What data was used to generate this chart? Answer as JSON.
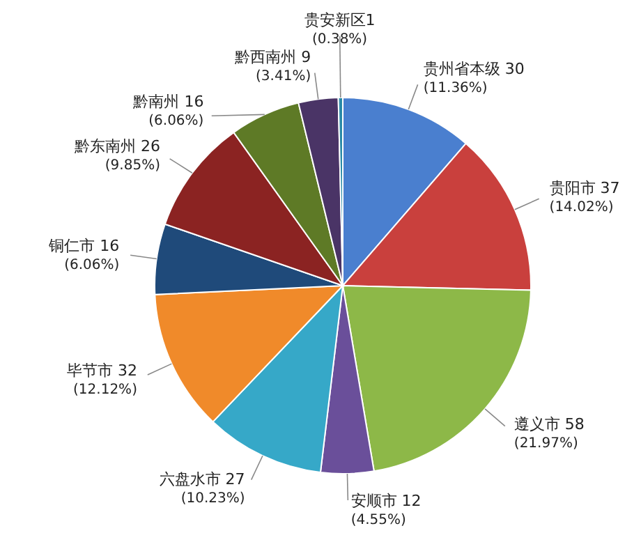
{
  "chart_data": {
    "type": "pie",
    "categories": [
      "贵州省本级 30",
      "贵阳市 37",
      "遵义市 58",
      "安顺市 12",
      "六盘水市 27",
      "毕节市 32",
      "铜仁市 16",
      "黔东南州 26",
      "黔南州 16",
      "黔西南州 9",
      "贵安新区1"
    ],
    "values": [
      11.36,
      14.02,
      21.97,
      4.55,
      10.23,
      12.12,
      6.06,
      9.85,
      6.06,
      3.41,
      0.38
    ],
    "value_labels": [
      "(11.36%)",
      "(14.02%)",
      "(21.97%)",
      "(4.55%)",
      "(10.23%)",
      "(12.12%)",
      "(6.06%)",
      "(9.85%)",
      "(6.06%)",
      "(3.41%)",
      "(0.38%)"
    ],
    "colors": [
      "#4a7fcf",
      "#c9403d",
      "#8db848",
      "#6a4f9a",
      "#36a8c8",
      "#f08a2a",
      "#1f4a7a",
      "#8b2322",
      "#5e7a26",
      "#4a3466",
      "#2a8aa8"
    ]
  }
}
